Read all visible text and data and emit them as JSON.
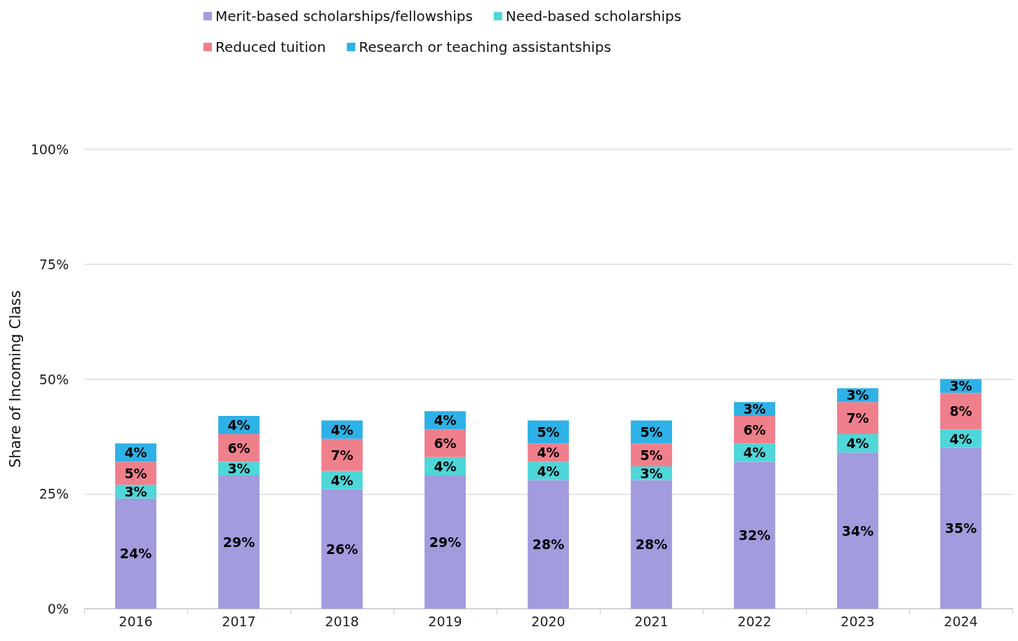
{
  "chart_data": {
    "type": "bar",
    "stacked": true,
    "ylabel": "Share of Incoming Class",
    "categories": [
      "2016",
      "2017",
      "2018",
      "2019",
      "2020",
      "2021",
      "2022",
      "2023",
      "2024"
    ],
    "series": [
      {
        "name": "Merit-based scholarships/fellowships",
        "color": "#a29bde",
        "values": [
          24,
          29,
          26,
          29,
          28,
          28,
          32,
          34,
          35
        ],
        "value_labels": [
          "24%",
          "29%",
          "26%",
          "29%",
          "28%",
          "28%",
          "32%",
          "34%",
          "35%"
        ]
      },
      {
        "name": "Need-based scholarships",
        "color": "#4fd6d8",
        "values": [
          3,
          3,
          4,
          4,
          4,
          3,
          4,
          4,
          4
        ],
        "value_labels": [
          "3%",
          "3%",
          "4%",
          "4%",
          "4%",
          "3%",
          "4%",
          "4%",
          "4%"
        ]
      },
      {
        "name": "Reduced tuition",
        "color": "#f07f8c",
        "values": [
          5,
          6,
          7,
          6,
          4,
          5,
          6,
          7,
          8
        ],
        "value_labels": [
          "5%",
          "6%",
          "7%",
          "6%",
          "4%",
          "5%",
          "6%",
          "7%",
          "8%"
        ]
      },
      {
        "name": "Research or teaching assistantships",
        "color": "#2eb1e6",
        "values": [
          4,
          4,
          4,
          4,
          5,
          5,
          3,
          3,
          3
        ],
        "value_labels": [
          "4%",
          "4%",
          "4%",
          "4%",
          "5%",
          "5%",
          "3%",
          "3%",
          "3%"
        ]
      }
    ],
    "ylim": [
      0,
      100
    ],
    "yticks": [
      {
        "value": 0,
        "label": "0%"
      },
      {
        "value": 25,
        "label": "25%"
      },
      {
        "value": 50,
        "label": "50%"
      },
      {
        "value": 75,
        "label": "75%"
      },
      {
        "value": 100,
        "label": "100%"
      }
    ],
    "grid": "y",
    "legend": "top"
  }
}
